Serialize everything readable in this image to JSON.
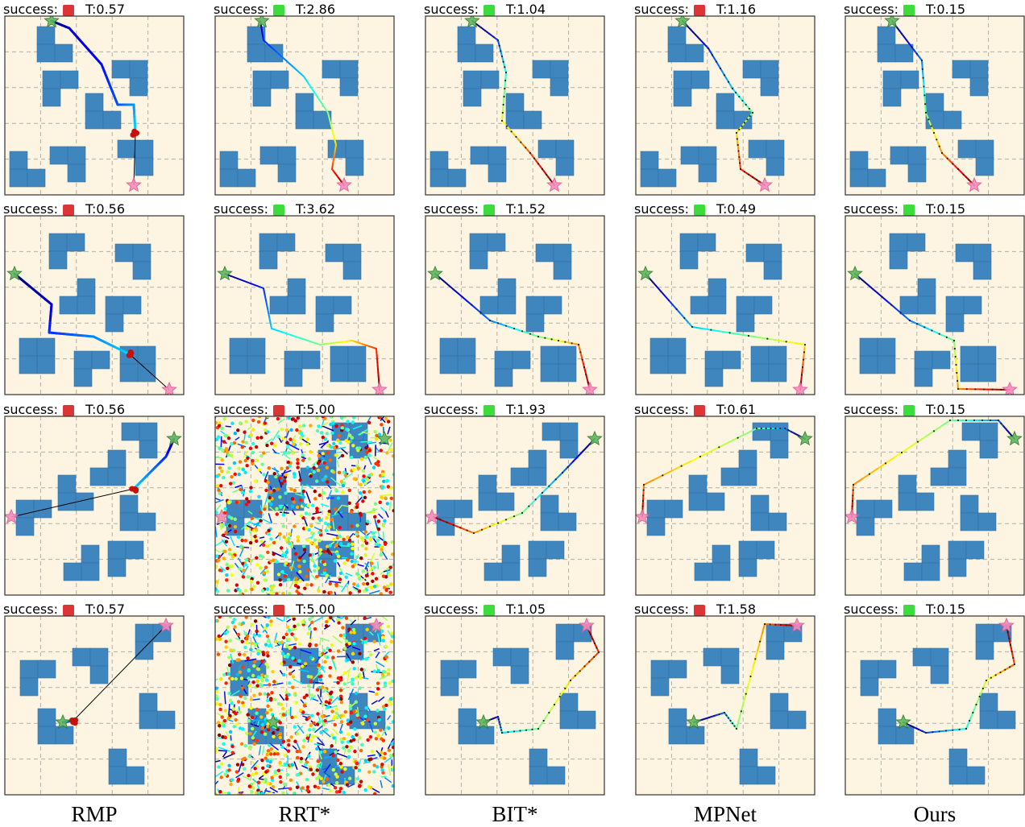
{
  "success_label": "success:",
  "success_colors": {
    "true": "#3ddc3d",
    "false": "#dc3535"
  },
  "columns": [
    "RMP",
    "RRT*",
    "BIT*",
    "MPNet",
    "Ours"
  ],
  "rows": [
    [
      {
        "success": false,
        "time": "T:0.57"
      },
      {
        "success": true,
        "time": "T:2.86"
      },
      {
        "success": true,
        "time": "T:1.04"
      },
      {
        "success": false,
        "time": "T:1.16"
      },
      {
        "success": true,
        "time": "T:0.15"
      }
    ],
    [
      {
        "success": false,
        "time": "T:0.56"
      },
      {
        "success": true,
        "time": "T:3.62"
      },
      {
        "success": true,
        "time": "T:1.52"
      },
      {
        "success": true,
        "time": "T:0.49"
      },
      {
        "success": true,
        "time": "T:0.15"
      }
    ],
    [
      {
        "success": false,
        "time": "T:0.56"
      },
      {
        "success": false,
        "time": "T:5.00"
      },
      {
        "success": true,
        "time": "T:1.93"
      },
      {
        "success": false,
        "time": "T:0.61"
      },
      {
        "success": true,
        "time": "T:0.15"
      }
    ],
    [
      {
        "success": false,
        "time": "T:0.57"
      },
      {
        "success": false,
        "time": "T:5.00"
      },
      {
        "success": true,
        "time": "T:1.05"
      },
      {
        "success": false,
        "time": "T:1.58"
      },
      {
        "success": true,
        "time": "T:0.15"
      }
    ]
  ]
}
